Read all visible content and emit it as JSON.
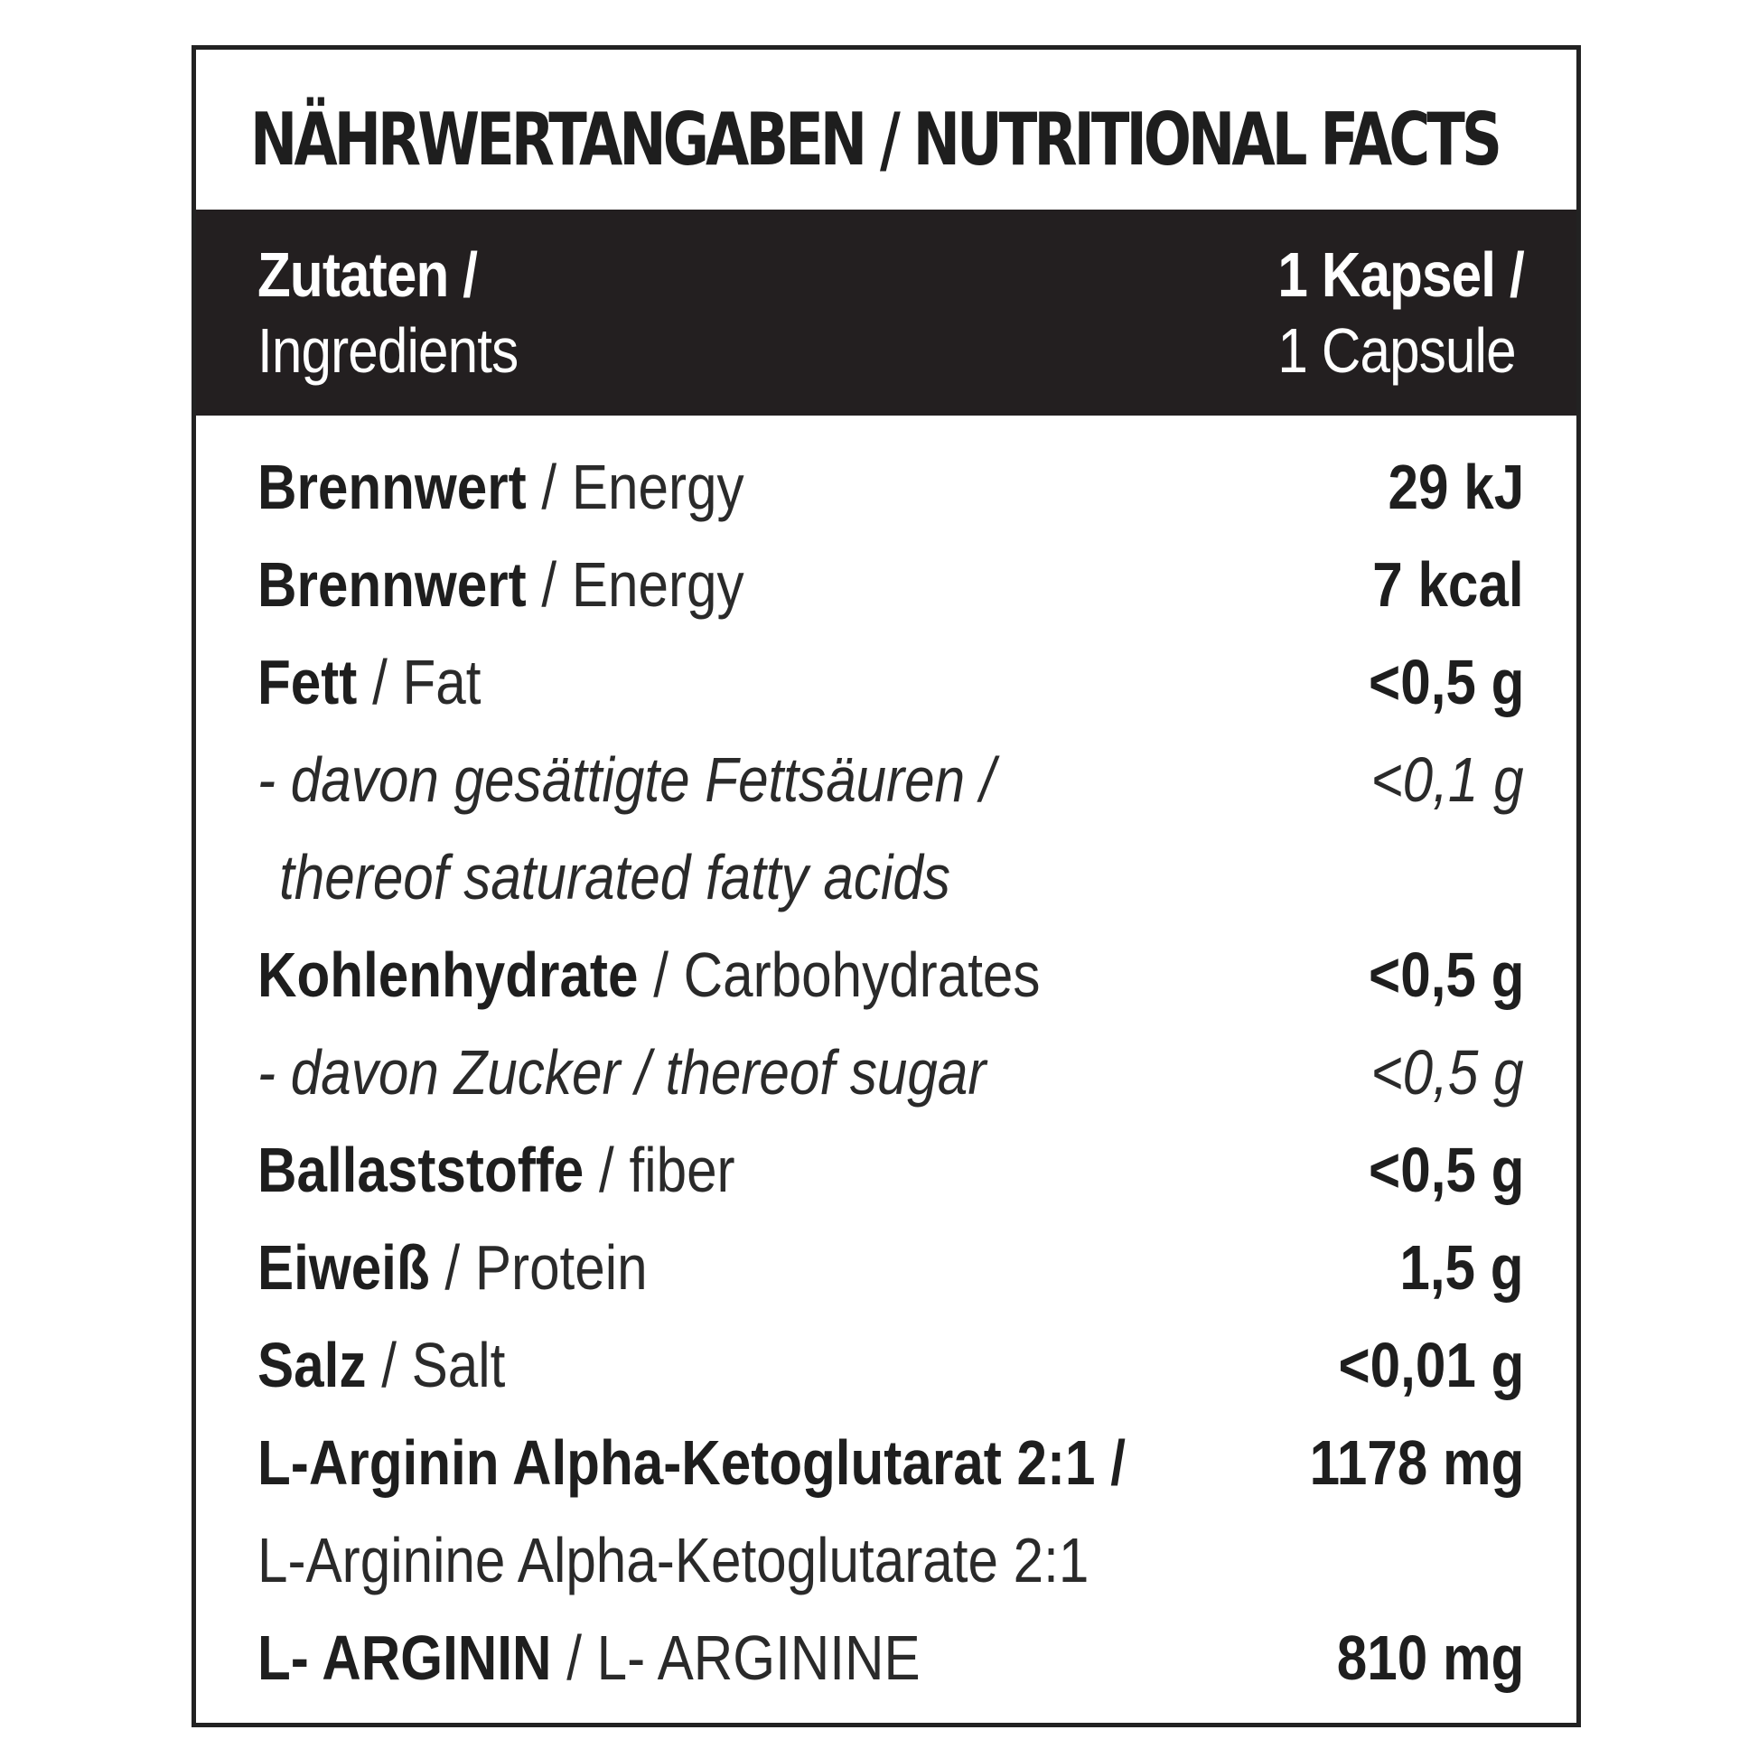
{
  "title": "NÄHRWERTANGABEN / NUTRITIONAL FACTS",
  "header": {
    "left_bold": "Zutaten /",
    "left_normal": "Ingredients",
    "right_bold": "1 Kapsel /",
    "right_normal": "1 Capsule"
  },
  "rows": [
    {
      "label_bold": "Brennwert",
      "label_sep": " / ",
      "label_normal": "Energy",
      "value": "29 kJ"
    },
    {
      "label_bold": "Brennwert",
      "label_sep": " / ",
      "label_normal": "Energy",
      "value": "7 kcal"
    },
    {
      "label_bold": "Fett",
      "label_sep": " / ",
      "label_normal": "Fat",
      "value": "<0,5 g"
    },
    {
      "label_italic": "- davon gesättigte Fettsäuren /",
      "value": "<0,1 g"
    },
    {
      "label_italic": "thereof saturated fatty acids"
    },
    {
      "label_bold": "Kohlenhydrate",
      "label_sep": " / ",
      "label_normal": "Carbohydrates",
      "value": "<0,5 g"
    },
    {
      "label_italic": "- davon Zucker / thereof sugar",
      "value": "<0,5 g"
    },
    {
      "label_bold": "Ballaststoffe",
      "label_sep": " / ",
      "label_normal": "fiber",
      "value": "<0,5 g"
    },
    {
      "label_bold": "Eiweiß",
      "label_sep": " / ",
      "label_normal": "Protein",
      "value": "1,5 g"
    },
    {
      "label_bold": "Salz",
      "label_sep": " / ",
      "label_normal": "Salt",
      "value": "<0,01 g"
    },
    {
      "label_bold": "L-Arginin Alpha-Ketoglutarat 2:1 /",
      "value": "1178 mg"
    },
    {
      "label_normal": "L-Arginine Alpha-Ketoglutarate 2:1"
    },
    {
      "label_bold": "L- ARGININ",
      "label_sep": " / ",
      "label_normal": "L- ARGININE",
      "value": "810 mg"
    }
  ]
}
